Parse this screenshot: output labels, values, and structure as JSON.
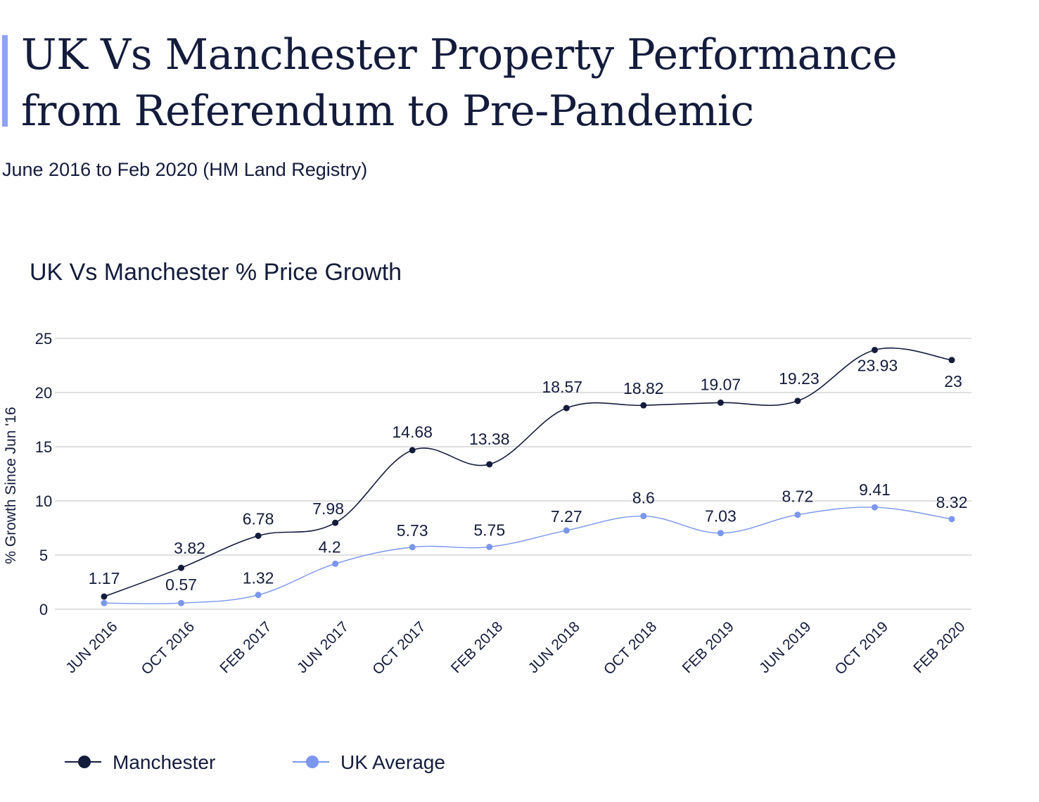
{
  "header": {
    "title": "UK Vs Manchester Property Performance from Referendum to Pre-Pandemic",
    "subtitle": "June 2016 to Feb 2020 (HM Land Registry)",
    "accent_color": "#8ea3f5"
  },
  "chart_data": {
    "type": "line",
    "title": "UK Vs Manchester % Price Growth",
    "xlabel": "",
    "ylabel": "% Growth Since Jun '16",
    "categories": [
      "JUN 2016",
      "OCT 2016",
      "FEB 2017",
      "JUN 2017",
      "OCT 2017",
      "FEB 2018",
      "JUN 2018",
      "OCT 2018",
      "FEB 2019",
      "JUN 2019",
      "OCT 2019",
      "FEB 2020"
    ],
    "ylim": [
      0,
      25
    ],
    "yticks": [
      0,
      5,
      10,
      15,
      20,
      25
    ],
    "grid": true,
    "legend": "bottom-left",
    "series": [
      {
        "name": "Manchester",
        "color": "#141c3c",
        "values": [
          1.17,
          3.82,
          6.78,
          7.98,
          14.68,
          13.38,
          18.57,
          18.82,
          19.07,
          19.23,
          23.93,
          23
        ],
        "labels": [
          "1.17",
          "3.82",
          "6.78",
          "7.98",
          "14.68",
          "13.38",
          "18.57",
          "18.82",
          "19.07",
          "19.23",
          "23.93",
          "23"
        ]
      },
      {
        "name": "UK Average",
        "color": "#7b96ee",
        "values": [
          0.57,
          0.57,
          1.32,
          4.2,
          5.73,
          5.75,
          7.27,
          8.6,
          7.03,
          8.72,
          9.41,
          8.32
        ],
        "labels": [
          "",
          "0.57",
          "1.32",
          "4.2",
          "5.73",
          "5.75",
          "7.27",
          "8.6",
          "7.03",
          "8.72",
          "9.41",
          "8.32"
        ]
      }
    ]
  }
}
